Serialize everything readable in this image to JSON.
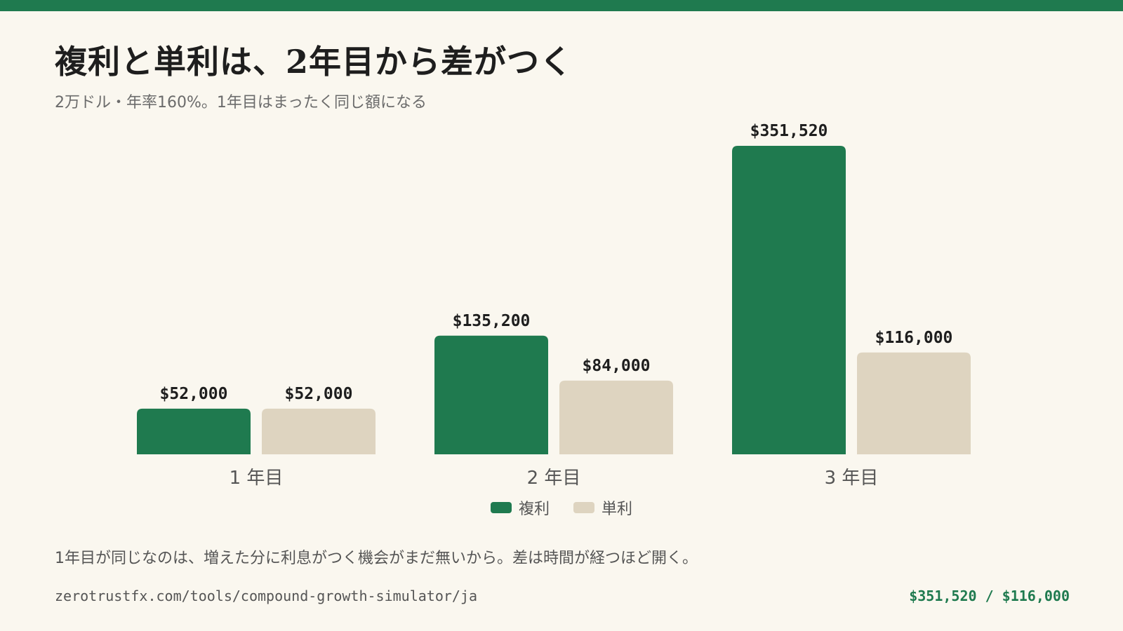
{
  "header": {
    "title": "複利と単利は、2年目から差がつく",
    "subtitle": "2万ドル・年率160%。1年目はまったく同じ額になる"
  },
  "colors": {
    "accent": "#1f7a4f",
    "compound": "#1f7a4f",
    "simple": "#ded4c0",
    "background": "#faf7ef"
  },
  "chart_data": {
    "type": "bar",
    "categories": [
      "1 年目",
      "2 年目",
      "3 年目"
    ],
    "series": [
      {
        "name": "複利",
        "values": [
          52000,
          135200,
          351520
        ],
        "labels": [
          "$52,000",
          "$135,200",
          "$351,520"
        ],
        "color": "#1f7a4f"
      },
      {
        "name": "単利",
        "values": [
          52000,
          84000,
          116000
        ],
        "labels": [
          "$52,000",
          "$84,000",
          "$116,000"
        ],
        "color": "#ded4c0"
      }
    ],
    "ylim": [
      0,
      351520
    ],
    "grid": false,
    "legend": "bottom-center"
  },
  "legend": {
    "compound": "複利",
    "simple": "単利"
  },
  "note": "1年目が同じなのは、増えた分に利息がつく機会がまだ無いから。差は時間が経つほど開く。",
  "footer": {
    "url": "zerotrustfx.com/tools/compound-growth-simulator/ja",
    "summary": "$351,520 / $116,000"
  }
}
